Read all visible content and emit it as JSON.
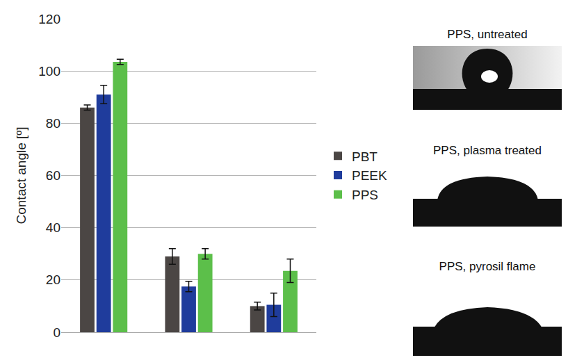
{
  "chart_data": {
    "type": "bar",
    "y_label": "Contact angle [º]",
    "categories": [
      null,
      null,
      null
    ],
    "series": [
      {
        "name": "PBT",
        "color": "#4b4644",
        "values": [
          86,
          29,
          10
        ],
        "errors": [
          1,
          3,
          1.5
        ]
      },
      {
        "name": "PEEK",
        "color": "#1f3c9c",
        "values": [
          91,
          17.5,
          10.5
        ],
        "errors": [
          3.5,
          2,
          4.5
        ]
      },
      {
        "name": "PPS",
        "color": "#5cbf4a",
        "values": [
          103.5,
          30,
          23.5
        ],
        "errors": [
          1,
          2,
          4.5
        ]
      }
    ],
    "ylim": [
      0,
      120
    ],
    "yticks": [
      0,
      20,
      40,
      60,
      80,
      100,
      120
    ],
    "grid": true,
    "legend": "right",
    "tick_labels": "y"
  },
  "photos": [
    {
      "caption": "PPS, untreated"
    },
    {
      "caption": "PPS, plasma treated"
    },
    {
      "caption": "PPS, pyrosil flame"
    }
  ]
}
